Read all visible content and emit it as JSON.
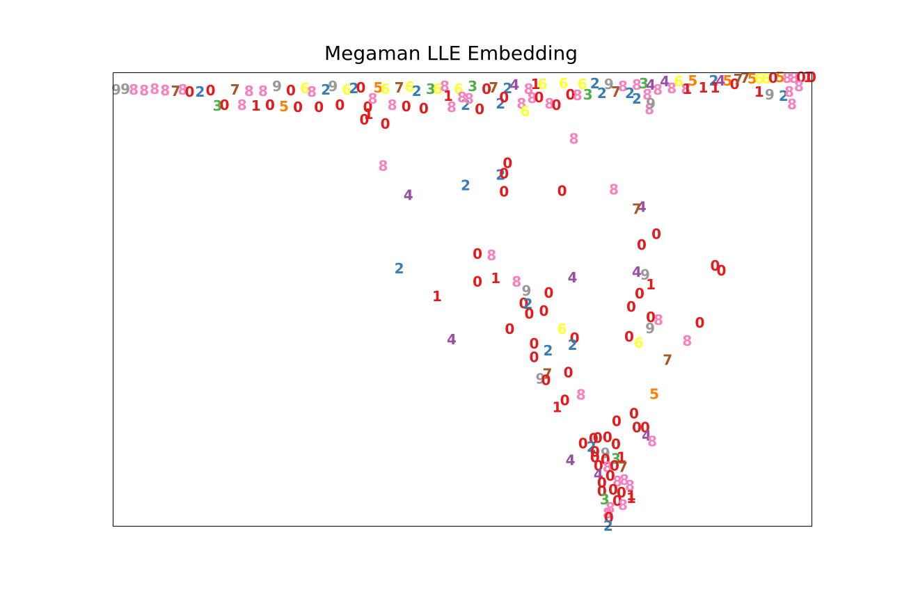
{
  "chart_data": {
    "type": "scatter",
    "title": "Megaman LLE Embedding",
    "xlabel": "",
    "ylabel": "",
    "ticks": false,
    "grid": false,
    "legend": "none",
    "xlim": [
      0,
      1000
    ],
    "ylim": [
      0,
      650
    ],
    "marker": "digit-label",
    "colors": {
      "0": "#e41a1c",
      "1": "#e41a1c",
      "2": "#377eb8",
      "3": "#4daf4a",
      "4": "#984ea3",
      "5": "#ff7f00",
      "6": "#ffff33",
      "7": "#a65628",
      "8": "#f781bf",
      "9": "#999999"
    },
    "points": [
      {
        "x": 5,
        "y": 625,
        "label": "9"
      },
      {
        "x": 18,
        "y": 626,
        "label": "9"
      },
      {
        "x": 30,
        "y": 625,
        "label": "8"
      },
      {
        "x": 45,
        "y": 624,
        "label": "8"
      },
      {
        "x": 60,
        "y": 626,
        "label": "8"
      },
      {
        "x": 75,
        "y": 624,
        "label": "8"
      },
      {
        "x": 90,
        "y": 623,
        "label": "7"
      },
      {
        "x": 100,
        "y": 625,
        "label": "8"
      },
      {
        "x": 110,
        "y": 622,
        "label": "0"
      },
      {
        "x": 125,
        "y": 622,
        "label": "2"
      },
      {
        "x": 140,
        "y": 624,
        "label": "0"
      },
      {
        "x": 150,
        "y": 602,
        "label": "3"
      },
      {
        "x": 160,
        "y": 603,
        "label": "0"
      },
      {
        "x": 175,
        "y": 625,
        "label": "7"
      },
      {
        "x": 185,
        "y": 603,
        "label": "8"
      },
      {
        "x": 195,
        "y": 623,
        "label": "8"
      },
      {
        "x": 205,
        "y": 602,
        "label": "1"
      },
      {
        "x": 215,
        "y": 623,
        "label": "8"
      },
      {
        "x": 225,
        "y": 603,
        "label": "0"
      },
      {
        "x": 235,
        "y": 630,
        "label": "9"
      },
      {
        "x": 245,
        "y": 601,
        "label": "5"
      },
      {
        "x": 255,
        "y": 624,
        "label": "0"
      },
      {
        "x": 265,
        "y": 600,
        "label": "0"
      },
      {
        "x": 275,
        "y": 627,
        "label": "6"
      },
      {
        "x": 285,
        "y": 622,
        "label": "8"
      },
      {
        "x": 295,
        "y": 600,
        "label": "0"
      },
      {
        "x": 305,
        "y": 625,
        "label": "2"
      },
      {
        "x": 315,
        "y": 630,
        "label": "9"
      },
      {
        "x": 325,
        "y": 603,
        "label": "0"
      },
      {
        "x": 335,
        "y": 625,
        "label": "6"
      },
      {
        "x": 345,
        "y": 627,
        "label": "2"
      },
      {
        "x": 355,
        "y": 628,
        "label": "0"
      },
      {
        "x": 365,
        "y": 600,
        "label": "0"
      },
      {
        "x": 372,
        "y": 612,
        "label": "8"
      },
      {
        "x": 380,
        "y": 628,
        "label": "5"
      },
      {
        "x": 390,
        "y": 626,
        "label": "6"
      },
      {
        "x": 400,
        "y": 603,
        "label": "8"
      },
      {
        "x": 410,
        "y": 628,
        "label": "7"
      },
      {
        "x": 420,
        "y": 601,
        "label": "0"
      },
      {
        "x": 425,
        "y": 629,
        "label": "6"
      },
      {
        "x": 435,
        "y": 623,
        "label": "2"
      },
      {
        "x": 445,
        "y": 598,
        "label": "0"
      },
      {
        "x": 455,
        "y": 626,
        "label": "3"
      },
      {
        "x": 465,
        "y": 626,
        "label": "6"
      },
      {
        "x": 475,
        "y": 630,
        "label": "8"
      },
      {
        "x": 485,
        "y": 600,
        "label": "8"
      },
      {
        "x": 495,
        "y": 626,
        "label": "6"
      },
      {
        "x": 505,
        "y": 603,
        "label": "2"
      },
      {
        "x": 515,
        "y": 630,
        "label": "3"
      },
      {
        "x": 525,
        "y": 597,
        "label": "0"
      },
      {
        "x": 535,
        "y": 626,
        "label": "0"
      },
      {
        "x": 545,
        "y": 628,
        "label": "7"
      },
      {
        "x": 555,
        "y": 605,
        "label": "2"
      },
      {
        "x": 565,
        "y": 627,
        "label": "2"
      },
      {
        "x": 575,
        "y": 632,
        "label": "4"
      },
      {
        "x": 585,
        "y": 605,
        "label": "8"
      },
      {
        "x": 595,
        "y": 626,
        "label": "8"
      },
      {
        "x": 605,
        "y": 633,
        "label": "1"
      },
      {
        "x": 615,
        "y": 633,
        "label": "6"
      },
      {
        "x": 625,
        "y": 605,
        "label": "8"
      },
      {
        "x": 635,
        "y": 603,
        "label": "0"
      },
      {
        "x": 645,
        "y": 634,
        "label": "6"
      },
      {
        "x": 655,
        "y": 618,
        "label": "0"
      },
      {
        "x": 665,
        "y": 617,
        "label": "8"
      },
      {
        "x": 672,
        "y": 633,
        "label": "6"
      },
      {
        "x": 680,
        "y": 618,
        "label": "3"
      },
      {
        "x": 690,
        "y": 634,
        "label": "2"
      },
      {
        "x": 700,
        "y": 620,
        "label": "2"
      },
      {
        "x": 710,
        "y": 633,
        "label": "9"
      },
      {
        "x": 720,
        "y": 622,
        "label": "7"
      },
      {
        "x": 730,
        "y": 630,
        "label": "8"
      },
      {
        "x": 740,
        "y": 620,
        "label": "2"
      },
      {
        "x": 750,
        "y": 632,
        "label": "8"
      },
      {
        "x": 760,
        "y": 634,
        "label": "3"
      },
      {
        "x": 770,
        "y": 632,
        "label": "4"
      },
      {
        "x": 780,
        "y": 625,
        "label": "8"
      },
      {
        "x": 790,
        "y": 637,
        "label": "4"
      },
      {
        "x": 800,
        "y": 627,
        "label": "8"
      },
      {
        "x": 810,
        "y": 637,
        "label": "6"
      },
      {
        "x": 820,
        "y": 626,
        "label": "8"
      },
      {
        "x": 830,
        "y": 638,
        "label": "5"
      },
      {
        "x": 845,
        "y": 628,
        "label": "1"
      },
      {
        "x": 860,
        "y": 638,
        "label": "2"
      },
      {
        "x": 870,
        "y": 638,
        "label": "4"
      },
      {
        "x": 880,
        "y": 638,
        "label": "5"
      },
      {
        "x": 890,
        "y": 633,
        "label": "0"
      },
      {
        "x": 895,
        "y": 640,
        "label": "7"
      },
      {
        "x": 905,
        "y": 642,
        "label": "7"
      },
      {
        "x": 915,
        "y": 641,
        "label": "5"
      },
      {
        "x": 925,
        "y": 641,
        "label": "6"
      },
      {
        "x": 935,
        "y": 641,
        "label": "6"
      },
      {
        "x": 945,
        "y": 642,
        "label": "0"
      },
      {
        "x": 955,
        "y": 643,
        "label": "5"
      },
      {
        "x": 965,
        "y": 642,
        "label": "8"
      },
      {
        "x": 975,
        "y": 642,
        "label": "8"
      },
      {
        "x": 985,
        "y": 643,
        "label": "0"
      },
      {
        "x": 995,
        "y": 643,
        "label": "1"
      },
      {
        "x": 1000,
        "y": 643,
        "label": "0"
      },
      {
        "x": 480,
        "y": 616,
        "label": "1"
      },
      {
        "x": 500,
        "y": 614,
        "label": "8"
      },
      {
        "x": 510,
        "y": 612,
        "label": "8"
      },
      {
        "x": 560,
        "y": 614,
        "label": "0"
      },
      {
        "x": 600,
        "y": 613,
        "label": "8"
      },
      {
        "x": 610,
        "y": 614,
        "label": "0"
      },
      {
        "x": 590,
        "y": 594,
        "label": "6"
      },
      {
        "x": 360,
        "y": 582,
        "label": "0"
      },
      {
        "x": 390,
        "y": 576,
        "label": "0"
      },
      {
        "x": 366,
        "y": 590,
        "label": "1"
      },
      {
        "x": 750,
        "y": 612,
        "label": "2"
      },
      {
        "x": 765,
        "y": 618,
        "label": "8"
      },
      {
        "x": 768,
        "y": 597,
        "label": "8"
      },
      {
        "x": 770,
        "y": 605,
        "label": "9"
      },
      {
        "x": 822,
        "y": 626,
        "label": "1"
      },
      {
        "x": 862,
        "y": 628,
        "label": "1"
      },
      {
        "x": 925,
        "y": 622,
        "label": "1"
      },
      {
        "x": 940,
        "y": 618,
        "label": "9"
      },
      {
        "x": 960,
        "y": 616,
        "label": "2"
      },
      {
        "x": 968,
        "y": 622,
        "label": "8"
      },
      {
        "x": 972,
        "y": 604,
        "label": "8"
      },
      {
        "x": 982,
        "y": 630,
        "label": "8"
      },
      {
        "x": 660,
        "y": 555,
        "label": "8"
      },
      {
        "x": 387,
        "y": 516,
        "label": "8"
      },
      {
        "x": 565,
        "y": 520,
        "label": "0"
      },
      {
        "x": 555,
        "y": 503,
        "label": "2"
      },
      {
        "x": 560,
        "y": 505,
        "label": "0"
      },
      {
        "x": 505,
        "y": 488,
        "label": "2"
      },
      {
        "x": 560,
        "y": 479,
        "label": "0"
      },
      {
        "x": 643,
        "y": 480,
        "label": "0"
      },
      {
        "x": 717,
        "y": 482,
        "label": "8"
      },
      {
        "x": 423,
        "y": 474,
        "label": "4"
      },
      {
        "x": 757,
        "y": 457,
        "label": "4"
      },
      {
        "x": 750,
        "y": 454,
        "label": "7"
      },
      {
        "x": 778,
        "y": 418,
        "label": "0"
      },
      {
        "x": 757,
        "y": 403,
        "label": "0"
      },
      {
        "x": 522,
        "y": 390,
        "label": "0"
      },
      {
        "x": 542,
        "y": 388,
        "label": "8"
      },
      {
        "x": 410,
        "y": 369,
        "label": "2"
      },
      {
        "x": 862,
        "y": 373,
        "label": "0"
      },
      {
        "x": 871,
        "y": 366,
        "label": "0"
      },
      {
        "x": 750,
        "y": 364,
        "label": "4"
      },
      {
        "x": 762,
        "y": 360,
        "label": "9"
      },
      {
        "x": 522,
        "y": 350,
        "label": "0"
      },
      {
        "x": 548,
        "y": 355,
        "label": "1"
      },
      {
        "x": 578,
        "y": 350,
        "label": "8"
      },
      {
        "x": 592,
        "y": 337,
        "label": "9"
      },
      {
        "x": 658,
        "y": 356,
        "label": "4"
      },
      {
        "x": 770,
        "y": 346,
        "label": "1"
      },
      {
        "x": 464,
        "y": 329,
        "label": "1"
      },
      {
        "x": 624,
        "y": 334,
        "label": "0"
      },
      {
        "x": 754,
        "y": 333,
        "label": "0"
      },
      {
        "x": 588,
        "y": 319,
        "label": "0"
      },
      {
        "x": 594,
        "y": 318,
        "label": "2"
      },
      {
        "x": 617,
        "y": 308,
        "label": "0"
      },
      {
        "x": 742,
        "y": 314,
        "label": "0"
      },
      {
        "x": 596,
        "y": 304,
        "label": "0"
      },
      {
        "x": 770,
        "y": 299,
        "label": "0"
      },
      {
        "x": 781,
        "y": 295,
        "label": "8"
      },
      {
        "x": 840,
        "y": 291,
        "label": "0"
      },
      {
        "x": 643,
        "y": 282,
        "label": "6"
      },
      {
        "x": 568,
        "y": 282,
        "label": "0"
      },
      {
        "x": 769,
        "y": 283,
        "label": "9"
      },
      {
        "x": 485,
        "y": 267,
        "label": "4"
      },
      {
        "x": 661,
        "y": 269,
        "label": "0"
      },
      {
        "x": 739,
        "y": 271,
        "label": "0"
      },
      {
        "x": 822,
        "y": 265,
        "label": "8"
      },
      {
        "x": 753,
        "y": 262,
        "label": "6"
      },
      {
        "x": 603,
        "y": 261,
        "label": "0"
      },
      {
        "x": 658,
        "y": 259,
        "label": "2"
      },
      {
        "x": 623,
        "y": 251,
        "label": "2"
      },
      {
        "x": 603,
        "y": 242,
        "label": "0"
      },
      {
        "x": 794,
        "y": 238,
        "label": "7"
      },
      {
        "x": 652,
        "y": 220,
        "label": "0"
      },
      {
        "x": 622,
        "y": 218,
        "label": "7"
      },
      {
        "x": 612,
        "y": 211,
        "label": "9"
      },
      {
        "x": 620,
        "y": 209,
        "label": "0"
      },
      {
        "x": 670,
        "y": 188,
        "label": "8"
      },
      {
        "x": 647,
        "y": 180,
        "label": "0"
      },
      {
        "x": 775,
        "y": 189,
        "label": "5"
      },
      {
        "x": 636,
        "y": 170,
        "label": "1"
      },
      {
        "x": 746,
        "y": 161,
        "label": "0"
      },
      {
        "x": 721,
        "y": 150,
        "label": "0"
      },
      {
        "x": 750,
        "y": 141,
        "label": "0"
      },
      {
        "x": 762,
        "y": 141,
        "label": "0"
      },
      {
        "x": 764,
        "y": 129,
        "label": "4"
      },
      {
        "x": 772,
        "y": 121,
        "label": "8"
      },
      {
        "x": 655,
        "y": 94,
        "label": "4"
      },
      {
        "x": 673,
        "y": 118,
        "label": "0"
      },
      {
        "x": 688,
        "y": 125,
        "label": "0"
      },
      {
        "x": 694,
        "y": 126,
        "label": "0"
      },
      {
        "x": 708,
        "y": 127,
        "label": "0"
      },
      {
        "x": 720,
        "y": 117,
        "label": "0"
      },
      {
        "x": 685,
        "y": 113,
        "label": "2"
      },
      {
        "x": 690,
        "y": 106,
        "label": "0"
      },
      {
        "x": 705,
        "y": 104,
        "label": "9"
      },
      {
        "x": 690,
        "y": 98,
        "label": "0"
      },
      {
        "x": 705,
        "y": 95,
        "label": "0"
      },
      {
        "x": 720,
        "y": 96,
        "label": "3"
      },
      {
        "x": 728,
        "y": 98,
        "label": "1"
      },
      {
        "x": 695,
        "y": 86,
        "label": "0"
      },
      {
        "x": 708,
        "y": 84,
        "label": "8"
      },
      {
        "x": 718,
        "y": 86,
        "label": "0"
      },
      {
        "x": 730,
        "y": 84,
        "label": "7"
      },
      {
        "x": 695,
        "y": 74,
        "label": "4"
      },
      {
        "x": 712,
        "y": 72,
        "label": "0"
      },
      {
        "x": 722,
        "y": 64,
        "label": "8"
      },
      {
        "x": 732,
        "y": 66,
        "label": "8"
      },
      {
        "x": 700,
        "y": 62,
        "label": "0"
      },
      {
        "x": 716,
        "y": 52,
        "label": "0"
      },
      {
        "x": 728,
        "y": 48,
        "label": "0"
      },
      {
        "x": 742,
        "y": 44,
        "label": "1"
      },
      {
        "x": 700,
        "y": 50,
        "label": "0"
      },
      {
        "x": 704,
        "y": 38,
        "label": "3"
      },
      {
        "x": 722,
        "y": 36,
        "label": "0"
      },
      {
        "x": 712,
        "y": 26,
        "label": "8"
      },
      {
        "x": 730,
        "y": 30,
        "label": "8"
      },
      {
        "x": 708,
        "y": 18,
        "label": "8"
      },
      {
        "x": 710,
        "y": 12,
        "label": "0"
      },
      {
        "x": 709,
        "y": 0,
        "label": "2"
      },
      {
        "x": 740,
        "y": 58,
        "label": "8"
      },
      {
        "x": 742,
        "y": 40,
        "label": "1"
      }
    ]
  }
}
